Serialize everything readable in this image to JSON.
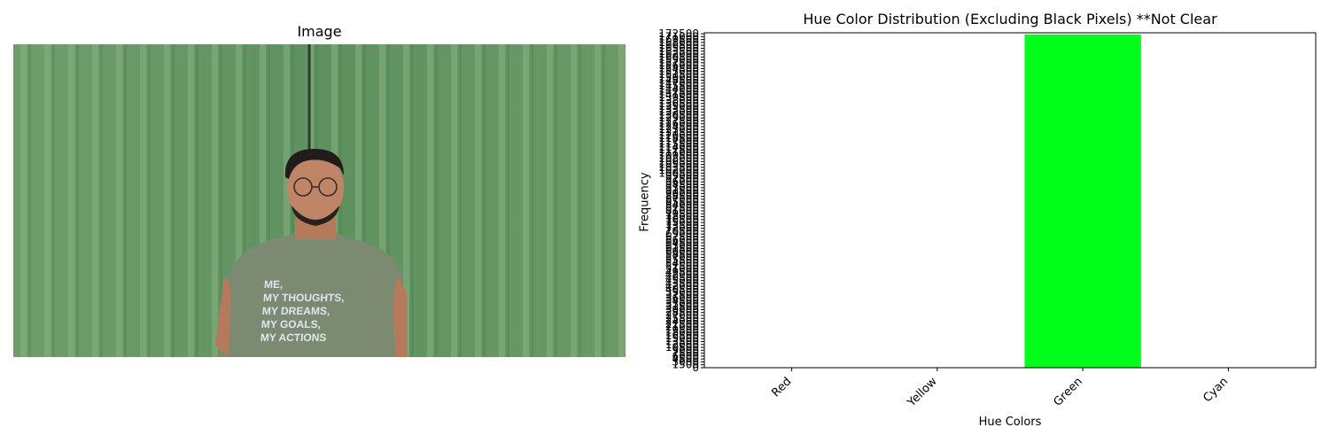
{
  "image_panel": {
    "title": "Image",
    "shirt_text": [
      "ME,",
      "MY THOUGHTS,",
      "MY DREAMS,",
      "MY GOALS,",
      "MY ACTIONS"
    ]
  },
  "chart_data": {
    "type": "bar",
    "title": "Hue Color Distribution (Excluding Black Pixels) **Not Clear",
    "xlabel": "Hue Colors",
    "ylabel": "Frequency",
    "categories": [
      "Red",
      "Yellow",
      "Green",
      "Cyan"
    ],
    "values": [
      0,
      0,
      172130,
      0
    ],
    "colors": [
      "#ff0000",
      "#ffff00",
      "#00ff1a",
      "#00ffff"
    ],
    "ylim": [
      0,
      173000
    ],
    "ytick_labels": [
      "0",
      "1500",
      "3000",
      "4500",
      "6000",
      "7500",
      "9000",
      "10500",
      "12000",
      "13500",
      "15000",
      "16500",
      "18000",
      "19500",
      "21000",
      "22500",
      "24000",
      "25500",
      "27000",
      "28500",
      "30000",
      "31500",
      "33000",
      "34500",
      "36000",
      "37500",
      "39000",
      "40500",
      "42000",
      "43500",
      "45000",
      "46500",
      "48000",
      "49500",
      "51000",
      "52500",
      "54000",
      "55500",
      "57000",
      "58500",
      "60000",
      "61500",
      "63000",
      "64500",
      "66000",
      "67500",
      "69000",
      "70500",
      "72000",
      "73500",
      "75000",
      "76500",
      "78000",
      "79500",
      "81000",
      "82500",
      "84000",
      "85500",
      "87000",
      "88500",
      "90000",
      "91500",
      "93000",
      "94500",
      "96000",
      "97500",
      "99000",
      "100500",
      "102000",
      "103500",
      "105000",
      "106500",
      "108000",
      "109500",
      "111000",
      "112500",
      "114000",
      "115500",
      "117000",
      "118500",
      "120000",
      "121500",
      "123000",
      "124500",
      "126000",
      "127500",
      "129000",
      "130500",
      "132000",
      "133500",
      "135000",
      "136500",
      "138000",
      "139500",
      "141000",
      "142500",
      "144000",
      "145500",
      "147000",
      "148500",
      "150000",
      "151500",
      "153000",
      "154500",
      "156000",
      "157500",
      "159000",
      "160500",
      "162000",
      "163500",
      "165000",
      "166500",
      "168000",
      "169500",
      "171000",
      "172500"
    ],
    "rotate_xticks_deg": 45,
    "grid": false
  }
}
